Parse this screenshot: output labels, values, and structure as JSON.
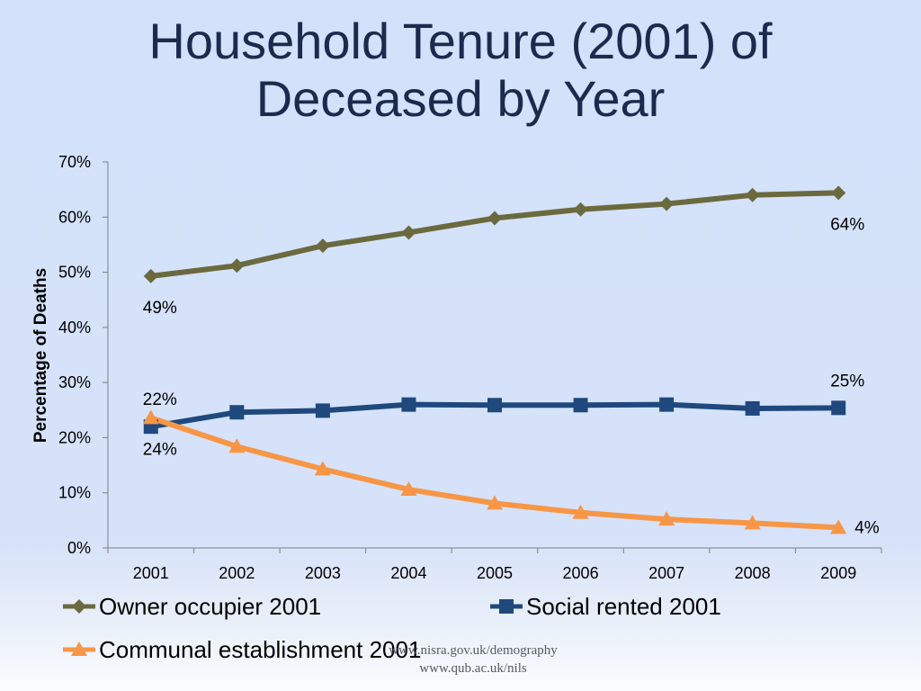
{
  "chart_data": {
    "type": "line",
    "title_lines": [
      "Household Tenure (2001) of",
      "Deceased by Year"
    ],
    "xlabel": "",
    "ylabel": "Percentage of Deaths",
    "x": [
      "2001",
      "2002",
      "2003",
      "2004",
      "2005",
      "2006",
      "2007",
      "2008",
      "2009"
    ],
    "ylim": [
      0,
      70
    ],
    "yticks": [
      0,
      10,
      20,
      30,
      40,
      50,
      60,
      70
    ],
    "ytick_labels": [
      "0%",
      "10%",
      "20%",
      "30%",
      "40%",
      "50%",
      "60%",
      "70%"
    ],
    "grid": false,
    "legend_position": "bottom",
    "series": [
      {
        "name": "Owner occupier 2001",
        "color": "#6b6a3e",
        "marker": "diamond",
        "values": [
          49.3,
          51.2,
          54.8,
          57.2,
          59.8,
          61.4,
          62.4,
          64.0,
          64.4
        ],
        "labels": [
          {
            "index": 0,
            "text": "49%",
            "position": "below"
          },
          {
            "index": 8,
            "text": "64%",
            "position": "below"
          }
        ]
      },
      {
        "name": "Social rented 2001",
        "color": "#1f497d",
        "marker": "square",
        "values": [
          22.0,
          24.6,
          24.9,
          26.0,
          25.9,
          25.9,
          26.0,
          25.3,
          25.4
        ],
        "labels": [
          {
            "index": 0,
            "text": "22%",
            "position": "above"
          },
          {
            "index": 8,
            "text": "25%",
            "position": "above"
          }
        ]
      },
      {
        "name": "Communal establishment 2001",
        "color": "#f79646",
        "marker": "triangle",
        "values": [
          23.6,
          18.4,
          14.3,
          10.6,
          8.1,
          6.4,
          5.2,
          4.5,
          3.7
        ],
        "labels": [
          {
            "index": 0,
            "text": "24%",
            "position": "below"
          },
          {
            "index": 8,
            "text": "4%",
            "position": "right"
          }
        ]
      }
    ]
  },
  "footer": {
    "line1": "www.nisra.gov.uk/demography",
    "line2": "www.qub.ac.uk/nils"
  }
}
